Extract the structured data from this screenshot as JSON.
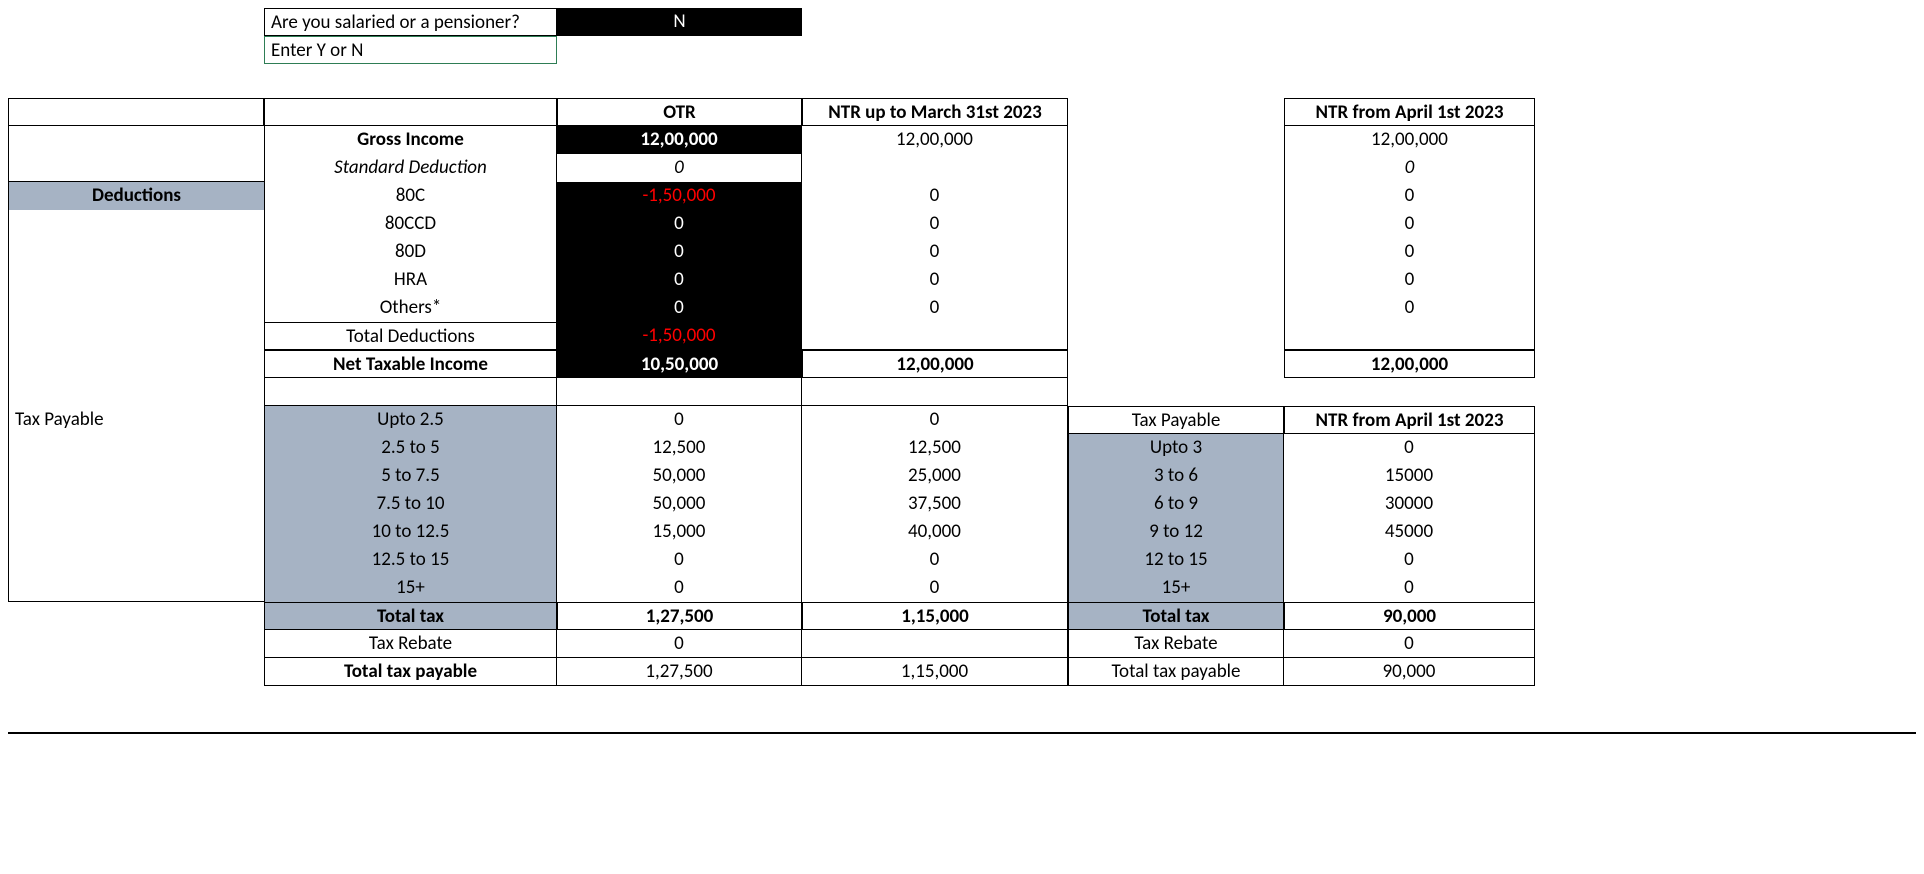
{
  "prompt": {
    "question": "Are you salaried or a pensioner?",
    "answer": "N",
    "hint": "Enter Y or N"
  },
  "headers": {
    "otr": "OTR",
    "ntr_old": "NTR up to March 31st 2023",
    "ntr_new": "NTR from April 1st 2023"
  },
  "labels": {
    "gross_income": "Gross Income",
    "std_deduction": "Standard Deduction",
    "deductions": "Deductions",
    "c80c": "80C",
    "c80ccd": "80CCD",
    "c80d": "80D",
    "hra": "HRA",
    "others": "Others*",
    "total_deductions": "Total Deductions",
    "net_taxable": "Net Taxable Income",
    "tax_payable": "Tax Payable",
    "total_tax": "Total tax",
    "tax_rebate": "Tax Rebate",
    "total_tax_payable": "Total tax payable"
  },
  "income": {
    "gross": {
      "otr": "12,00,000",
      "ntr_old": "12,00,000",
      "ntr_new": "12,00,000"
    },
    "std_deduction": {
      "otr": "0",
      "ntr_new": "0"
    },
    "ded_80c": {
      "otr": "-1,50,000",
      "ntr_old": "0",
      "ntr_new": "0"
    },
    "ded_80ccd": {
      "otr": "0",
      "ntr_old": "0",
      "ntr_new": "0"
    },
    "ded_80d": {
      "otr": "0",
      "ntr_old": "0",
      "ntr_new": "0"
    },
    "ded_hra": {
      "otr": "0",
      "ntr_old": "0",
      "ntr_new": "0"
    },
    "ded_others": {
      "otr": "0",
      "ntr_old": "0",
      "ntr_new": "0"
    },
    "total_ded": {
      "otr": "-1,50,000"
    },
    "net_taxable": {
      "otr": "10,50,000",
      "ntr_old": "12,00,000",
      "ntr_new": "12,00,000"
    }
  },
  "slabs_left": [
    {
      "label": "Upto 2.5",
      "otr": "0",
      "ntr_old": "0"
    },
    {
      "label": "2.5 to 5",
      "otr": "12,500",
      "ntr_old": "12,500"
    },
    {
      "label": "5 to 7.5",
      "otr": "50,000",
      "ntr_old": "25,000"
    },
    {
      "label": "7.5 to 10",
      "otr": "50,000",
      "ntr_old": "37,500"
    },
    {
      "label": "10 to 12.5",
      "otr": "15,000",
      "ntr_old": "40,000"
    },
    {
      "label": "12.5 to 15",
      "otr": "0",
      "ntr_old": "0"
    },
    {
      "label": "15+",
      "otr": "0",
      "ntr_old": "0"
    }
  ],
  "slabs_right": [
    {
      "label": "Upto 3",
      "val": "0"
    },
    {
      "label": "3 to 6",
      "val": "15000"
    },
    {
      "label": "6 to 9",
      "val": "30000"
    },
    {
      "label": "9 to 12",
      "val": "45000"
    },
    {
      "label": "12 to 15",
      "val": "0"
    },
    {
      "label": "15+",
      "val": "0"
    }
  ],
  "totals": {
    "total_tax": {
      "otr": "1,27,500",
      "ntr_old": "1,15,000",
      "ntr_new": "90,000"
    },
    "rebate": {
      "otr": "0",
      "ntr_new": "0"
    },
    "payable": {
      "otr": "1,27,500",
      "ntr_old": "1,15,000",
      "ntr_new": "90,000"
    }
  },
  "colors": {
    "black_bg": "#000000",
    "shade_bg": "#a6b3c4",
    "red_text": "#ff0000"
  }
}
